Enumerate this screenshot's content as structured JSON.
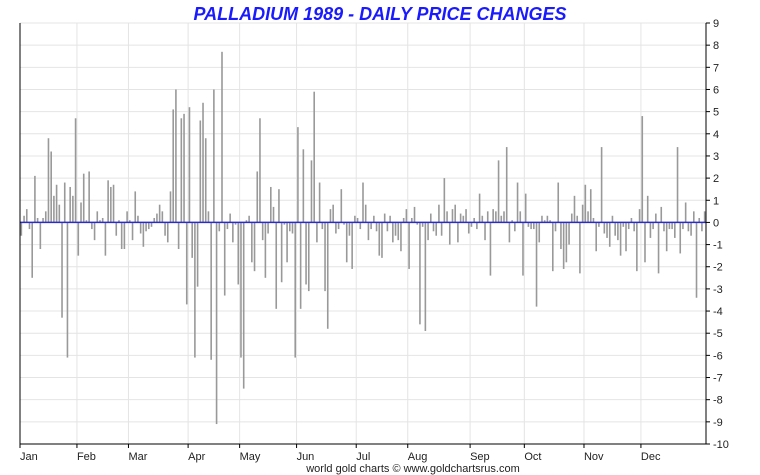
{
  "chart_data": {
    "type": "bar",
    "title": "PALLADIUM 1989 - DAILY PRICE CHANGES",
    "xlabel": "",
    "ylabel": "",
    "ylim": [
      -10,
      9
    ],
    "yticks": [
      "9",
      "8",
      "7",
      "6",
      "5",
      "4",
      "3",
      "2",
      "1",
      "0",
      "-1",
      "-2",
      "-3",
      "-4",
      "-5",
      "-6",
      "-7",
      "-8",
      "-9",
      "-10"
    ],
    "month_labels": [
      "Jan",
      "Feb",
      "Mar",
      "Apr",
      "May",
      "Jun",
      "Jul",
      "Aug",
      "Sep",
      "Oct",
      "Nov",
      "Dec"
    ],
    "grid": true,
    "credit": "world gold charts © www.goldchartsrus.com",
    "bar_color": "#999999",
    "zero_line_color": "#2a2ad0",
    "month_starts": [
      0,
      21,
      40,
      62,
      81,
      102,
      124,
      143,
      166,
      186,
      208,
      229
    ],
    "values": [
      -0.6,
      0.3,
      0.6,
      -0.3,
      -2.5,
      2.1,
      0.2,
      -1.2,
      0.2,
      0.5,
      3.8,
      3.2,
      1.2,
      1.7,
      0.8,
      -4.3,
      1.8,
      -6.1,
      1.6,
      1.2,
      4.7,
      -1.5,
      0.9,
      2.2,
      0.1,
      2.3,
      -0.3,
      -0.8,
      0.5,
      0.1,
      0.2,
      -1.5,
      1.9,
      1.6,
      1.7,
      -0.6,
      0.1,
      -1.2,
      -1.2,
      0.5,
      0.1,
      -0.8,
      1.4,
      0.3,
      -0.5,
      -1.1,
      -0.4,
      -0.3,
      -0.2,
      0.2,
      0.4,
      0.8,
      0.5,
      -0.6,
      -0.9,
      1.4,
      5.1,
      6.0,
      -1.2,
      4.7,
      4.9,
      -3.7,
      5.2,
      -1.6,
      -6.1,
      -2.9,
      4.6,
      5.4,
      3.8,
      0.5,
      -6.2,
      6.0,
      -9.1,
      -0.4,
      7.7,
      -3.3,
      -0.3,
      0.4,
      -0.9,
      -0.1,
      -2.8,
      -6.1,
      -7.5,
      0.1,
      0.3,
      -1.8,
      -2.2,
      2.3,
      4.7,
      -0.8,
      -2.5,
      -0.5,
      1.6,
      0.7,
      -3.9,
      1.5,
      -2.7,
      -0.1,
      -1.8,
      -0.4,
      -0.5,
      -6.1,
      4.3,
      -3.9,
      3.3,
      -2.8,
      -3.1,
      2.8,
      5.9,
      -0.9,
      1.8,
      -0.3,
      -3.1,
      -4.8,
      0.6,
      0.8,
      -0.5,
      -0.3,
      1.5,
      -0.1,
      -1.8,
      -0.6,
      -2.1,
      0.3,
      0.2,
      -0.3,
      1.8,
      0.8,
      -0.8,
      -0.3,
      0.3,
      -0.4,
      -1.5,
      -1.6,
      0.4,
      -0.4,
      0.3,
      -0.9,
      -0.6,
      -0.8,
      -1.3,
      0.2,
      0.6,
      -2.1,
      0.2,
      0.7,
      -0.1,
      -4.6,
      -0.2,
      -4.9,
      -0.8,
      0.4,
      -0.4,
      -0.6,
      0.8,
      -0.6,
      2.0,
      0.5,
      -1.0,
      0.6,
      0.8,
      -0.9,
      0.4,
      0.3,
      0.6,
      -0.5,
      -0.2,
      0.2,
      -0.3,
      1.3,
      0.3,
      -0.8,
      0.5,
      -2.4,
      0.6,
      0.5,
      2.8,
      0.3,
      0.5,
      3.4,
      -0.9,
      0.1,
      -0.4,
      1.8,
      0.5,
      -2.4,
      1.3,
      -0.2,
      -0.3,
      -0.3,
      -3.8,
      -0.9,
      0.3,
      0.1,
      0.3,
      0.1,
      -2.2,
      -0.4,
      1.8,
      -1.2,
      -2.1,
      -1.8,
      -1.0,
      0.4,
      1.2,
      0.3,
      -2.3,
      0.8,
      1.7,
      0.5,
      1.5,
      0.2,
      -1.3,
      -0.2,
      3.4,
      -0.5,
      -0.7,
      -1.1,
      0.3,
      -0.6,
      -0.8,
      -1.5,
      -0.2,
      -1.3,
      -0.3,
      0.2,
      -0.4,
      -2.2,
      0.6,
      4.8,
      -1.8,
      1.2,
      -0.7,
      -0.3,
      0.4,
      -2.3,
      0.7,
      -0.4,
      -1.3,
      -0.3,
      -0.3,
      -0.7,
      3.4,
      -1.4,
      -0.3,
      0.9,
      -0.4,
      -0.6,
      0.5,
      -3.4,
      0.2,
      -0.4,
      0.5
    ]
  }
}
